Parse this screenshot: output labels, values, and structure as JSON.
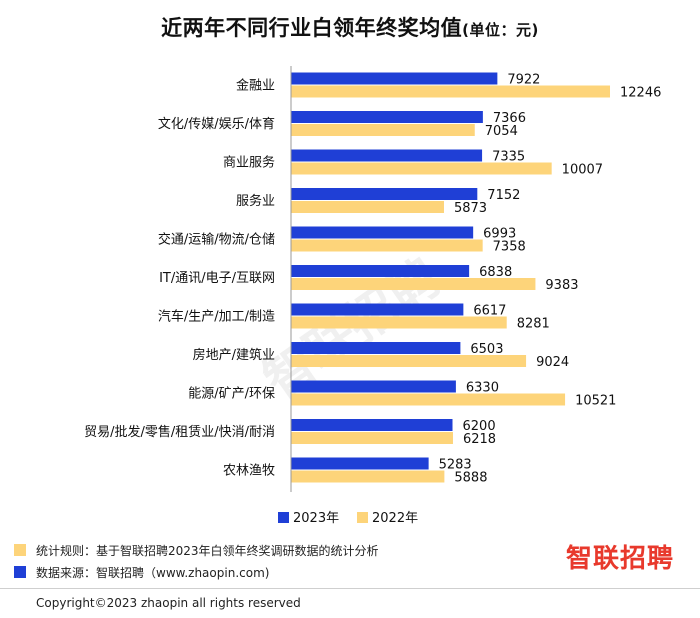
{
  "title": "近两年不同行业白领年终奖均值",
  "title_unit": "(单位：元)",
  "chart_data": {
    "type": "bar",
    "orientation": "horizontal",
    "categories": [
      "金融业",
      "文化/传媒/娱乐/体育",
      "商业服务",
      "服务业",
      "交通/运输/物流/仓储",
      "IT/通讯/电子/互联网",
      "汽车/生产/加工/制造",
      "房地产/建筑业",
      "能源/矿产/环保",
      "贸易/批发/零售/租赁业/快消/耐消",
      "农林渔牧"
    ],
    "series": [
      {
        "name": "2023年",
        "color": "#1f3fd6",
        "values": [
          7922,
          7366,
          7335,
          7152,
          6993,
          6838,
          6617,
          6503,
          6330,
          6200,
          5283
        ]
      },
      {
        "name": "2022年",
        "color": "#fdd47a",
        "values": [
          12246,
          7054,
          10007,
          5873,
          7358,
          9383,
          8281,
          9024,
          10521,
          6218,
          5888
        ]
      }
    ],
    "xlim": [
      0,
      13500
    ],
    "legend_position": "bottom",
    "grid": false
  },
  "footer": {
    "rule_text": "统计规则：基于智联招聘2023年白领年终奖调研数据的统计分析",
    "source_text": "数据来源：智联招聘（www.zhaopin.com)"
  },
  "logo_text": "智联招聘",
  "watermark_text": "智联招聘",
  "copyright": "Copyright©2023 zhaopin all rights reserved"
}
